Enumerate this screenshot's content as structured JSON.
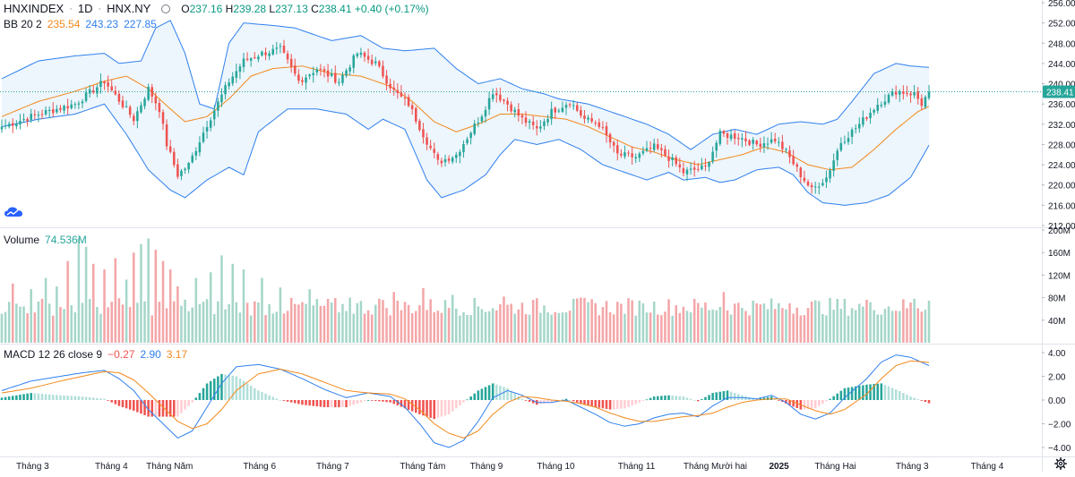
{
  "header": {
    "symbol": "HNXINDEX",
    "interval": "1D",
    "exchange": "HNX.NY",
    "open_label": "O",
    "open": "237.16",
    "high_label": "H",
    "high": "239.28",
    "low_label": "L",
    "low": "237.13",
    "close_label": "C",
    "close": "238.41",
    "change": "+0.40 (+0.17%)"
  },
  "bb_legend": {
    "label": "BB 20 2",
    "basis": "235.54",
    "upper": "243.23",
    "lower": "227.85"
  },
  "volume_legend": {
    "label": "Volume",
    "value": "74.536M"
  },
  "macd_legend": {
    "label": "MACD 12 26 close 9",
    "histogram": "−0.27",
    "macd": "2.90",
    "signal": "3.17"
  },
  "colors": {
    "up": "#26a69a",
    "down": "#ef5350",
    "bb_band_line": "#2f80ed",
    "bb_basis": "#f2891b",
    "bb_fill": "#e8f2fc",
    "last_price_badge": "#26a69a",
    "volume_up": "#a5d6c9",
    "volume_down": "#f4a6a8",
    "hist_up_strong": "#26a69a",
    "hist_up_weak": "#b2dfdb",
    "hist_down_strong": "#ef5350",
    "hist_down_weak": "#ffcdd2"
  },
  "icons": {
    "logo": "tradingview-cloud-icon",
    "settings": "gear-icon"
  },
  "chart_data": [
    {
      "type": "candlestick",
      "pane": "price",
      "y_ticks": [
        212,
        216,
        220,
        224,
        228,
        232,
        236,
        240,
        244,
        248,
        252,
        256
      ],
      "y_tick_labels": [
        "212.00",
        "216.00",
        "220.00",
        "224.00",
        "228.00",
        "232.00",
        "236.00",
        "240.00",
        "244.00",
        "248.00",
        "252.00",
        "256.00"
      ],
      "ylim": [
        212,
        256
      ],
      "last_price": 238.41,
      "last_price_label": "238.41",
      "x_labels": [
        "Tháng 3",
        "Tháng 4",
        "Tháng Năm",
        "Tháng 6",
        "Tháng 7",
        "Tháng Tám",
        "Tháng 9",
        "Tháng 10",
        "Tháng 11",
        "Tháng Mười hai",
        "2025",
        "Tháng Hai",
        "Tháng 3",
        "Tháng 4"
      ],
      "close_anchors": [
        [
          0,
          231.5
        ],
        [
          10,
          234
        ],
        [
          20,
          236
        ],
        [
          28,
          240.5
        ],
        [
          36,
          233
        ],
        [
          40,
          239
        ],
        [
          43,
          235
        ],
        [
          45,
          228
        ],
        [
          48,
          222
        ],
        [
          51,
          224
        ],
        [
          56,
          232
        ],
        [
          62,
          240.5
        ],
        [
          66,
          244.5
        ],
        [
          71,
          246
        ],
        [
          76,
          246.8
        ],
        [
          81,
          240.5
        ],
        [
          86,
          243
        ],
        [
          92,
          240.5
        ],
        [
          97,
          246
        ],
        [
          102,
          244
        ],
        [
          107,
          238.5
        ],
        [
          111,
          236
        ],
        [
          115,
          230
        ],
        [
          119,
          224.5
        ],
        [
          124,
          226
        ],
        [
          131,
          234
        ],
        [
          134,
          238.5
        ],
        [
          138,
          236
        ],
        [
          142,
          233
        ],
        [
          146,
          231
        ],
        [
          150,
          234.5
        ],
        [
          155,
          236.5
        ],
        [
          159,
          233
        ],
        [
          163,
          232
        ],
        [
          168,
          226
        ],
        [
          173,
          225.5
        ],
        [
          178,
          227.5
        ],
        [
          183,
          224.8
        ],
        [
          186,
          222.5
        ],
        [
          192,
          223.5
        ],
        [
          196,
          230
        ],
        [
          201,
          229.5
        ],
        [
          206,
          228
        ],
        [
          211,
          229
        ],
        [
          214,
          226.5
        ],
        [
          218,
          222
        ],
        [
          221,
          219
        ],
        [
          225,
          221.5
        ],
        [
          229,
          228.5
        ],
        [
          234,
          232
        ],
        [
          239,
          236
        ],
        [
          244,
          238.5
        ],
        [
          249,
          238
        ],
        [
          251,
          236
        ],
        [
          253,
          238.41
        ]
      ],
      "bb_upper_anchors": [
        [
          0,
          241
        ],
        [
          10,
          244.5
        ],
        [
          20,
          245.5
        ],
        [
          28,
          246
        ],
        [
          32,
          244
        ],
        [
          38,
          244.5
        ],
        [
          42,
          251
        ],
        [
          46,
          252.5
        ],
        [
          50,
          246
        ],
        [
          54,
          236
        ],
        [
          58,
          235
        ],
        [
          62,
          248
        ],
        [
          66,
          252
        ],
        [
          74,
          251.5
        ],
        [
          80,
          251
        ],
        [
          90,
          248.5
        ],
        [
          98,
          249.5
        ],
        [
          104,
          247
        ],
        [
          110,
          246.5
        ],
        [
          118,
          247
        ],
        [
          124,
          243
        ],
        [
          130,
          240
        ],
        [
          136,
          241
        ],
        [
          142,
          239
        ],
        [
          148,
          238
        ],
        [
          152,
          237
        ],
        [
          160,
          236
        ],
        [
          166,
          234.5
        ],
        [
          172,
          233
        ],
        [
          176,
          232
        ],
        [
          182,
          230
        ],
        [
          188,
          227
        ],
        [
          194,
          230
        ],
        [
          200,
          231
        ],
        [
          206,
          230
        ],
        [
          212,
          232
        ],
        [
          218,
          232.5
        ],
        [
          224,
          232
        ],
        [
          228,
          233
        ],
        [
          232,
          236.5
        ],
        [
          238,
          242
        ],
        [
          244,
          244
        ],
        [
          248,
          243.5
        ],
        [
          253,
          243.23
        ]
      ],
      "bb_lower_anchors": [
        [
          0,
          231.5
        ],
        [
          10,
          233
        ],
        [
          20,
          234
        ],
        [
          28,
          236
        ],
        [
          34,
          230
        ],
        [
          40,
          223
        ],
        [
          46,
          219
        ],
        [
          50,
          217.5
        ],
        [
          56,
          221
        ],
        [
          62,
          223.5
        ],
        [
          66,
          222
        ],
        [
          70,
          230.5
        ],
        [
          78,
          235
        ],
        [
          86,
          235
        ],
        [
          94,
          234
        ],
        [
          100,
          231
        ],
        [
          104,
          233
        ],
        [
          110,
          231
        ],
        [
          116,
          221
        ],
        [
          120,
          217.5
        ],
        [
          126,
          219
        ],
        [
          132,
          222
        ],
        [
          136,
          226
        ],
        [
          140,
          229
        ],
        [
          146,
          228
        ],
        [
          152,
          229
        ],
        [
          158,
          227
        ],
        [
          164,
          224
        ],
        [
          170,
          222.5
        ],
        [
          176,
          221
        ],
        [
          182,
          222.5
        ],
        [
          186,
          221
        ],
        [
          192,
          221.5
        ],
        [
          196,
          220.5
        ],
        [
          200,
          221
        ],
        [
          206,
          223
        ],
        [
          212,
          223.5
        ],
        [
          216,
          222
        ],
        [
          220,
          218.5
        ],
        [
          224,
          216.5
        ],
        [
          230,
          216
        ],
        [
          236,
          216.5
        ],
        [
          242,
          218
        ],
        [
          248,
          221.5
        ],
        [
          253,
          227.85
        ]
      ],
      "bb_basis_anchors": [
        [
          0,
          233.5
        ],
        [
          10,
          236.5
        ],
        [
          20,
          238.5
        ],
        [
          28,
          240.5
        ],
        [
          34,
          241.5
        ],
        [
          40,
          239
        ],
        [
          46,
          235
        ],
        [
          50,
          232.5
        ],
        [
          56,
          233.5
        ],
        [
          62,
          237
        ],
        [
          68,
          241.5
        ],
        [
          74,
          243
        ],
        [
          82,
          243.5
        ],
        [
          90,
          242
        ],
        [
          98,
          241.5
        ],
        [
          106,
          239.5
        ],
        [
          112,
          236.5
        ],
        [
          118,
          232.5
        ],
        [
          124,
          230.5
        ],
        [
          130,
          232
        ],
        [
          136,
          234
        ],
        [
          142,
          234
        ],
        [
          148,
          233.5
        ],
        [
          154,
          233
        ],
        [
          160,
          231.5
        ],
        [
          166,
          229.5
        ],
        [
          172,
          227.5
        ],
        [
          178,
          226.5
        ],
        [
          184,
          225
        ],
        [
          190,
          224
        ],
        [
          196,
          225
        ],
        [
          202,
          226
        ],
        [
          208,
          227.5
        ],
        [
          214,
          226.5
        ],
        [
          220,
          224
        ],
        [
          226,
          223
        ],
        [
          232,
          223.5
        ],
        [
          238,
          227
        ],
        [
          244,
          231
        ],
        [
          250,
          234.5
        ],
        [
          253,
          235.54
        ]
      ]
    },
    {
      "type": "bar",
      "pane": "volume",
      "y_ticks": [
        40,
        80,
        120,
        160,
        200
      ],
      "y_tick_labels": [
        "40M",
        "80M",
        "120M",
        "160M",
        "200M"
      ],
      "ylim": [
        0,
        200
      ],
      "unit": "M",
      "last_value": 74.536,
      "spikes": [
        [
          3,
          105
        ],
        [
          8,
          95
        ],
        [
          12,
          115
        ],
        [
          15,
          100
        ],
        [
          18,
          145
        ],
        [
          21,
          185
        ],
        [
          23,
          170
        ],
        [
          25,
          140
        ],
        [
          28,
          130
        ],
        [
          31,
          150
        ],
        [
          34,
          112
        ],
        [
          36,
          160
        ],
        [
          38,
          175
        ],
        [
          40,
          185
        ],
        [
          42,
          165
        ],
        [
          44,
          145
        ],
        [
          46,
          130
        ],
        [
          48,
          100
        ],
        [
          53,
          115
        ],
        [
          57,
          125
        ],
        [
          60,
          155
        ],
        [
          63,
          140
        ],
        [
          66,
          130
        ],
        [
          71,
          115
        ],
        [
          76,
          98
        ],
        [
          84,
          95
        ],
        [
          95,
          80
        ],
        [
          103,
          78
        ],
        [
          107,
          90
        ],
        [
          115,
          97
        ],
        [
          123,
          85
        ],
        [
          137,
          82
        ],
        [
          158,
          80
        ],
        [
          175,
          70
        ],
        [
          197,
          90
        ],
        [
          215,
          70
        ],
        [
          237,
          72
        ],
        [
          249,
          78
        ]
      ]
    },
    {
      "type": "histogram+line",
      "pane": "macd",
      "y_ticks": [
        -4,
        -2,
        0,
        2,
        4
      ],
      "y_tick_labels": [
        "−4.00",
        "−2.00",
        "0.00",
        "2.00",
        "4.00"
      ],
      "ylim": [
        -4.6,
        4.6
      ],
      "macd_anchors": [
        [
          0,
          0.8
        ],
        [
          8,
          1.6
        ],
        [
          16,
          2.0
        ],
        [
          22,
          2.3
        ],
        [
          28,
          2.5
        ],
        [
          32,
          1.8
        ],
        [
          36,
          0.8
        ],
        [
          40,
          -0.8
        ],
        [
          44,
          -2.0
        ],
        [
          48,
          -3.2
        ],
        [
          52,
          -2.6
        ],
        [
          56,
          -0.6
        ],
        [
          60,
          1.4
        ],
        [
          64,
          2.8
        ],
        [
          70,
          3.0
        ],
        [
          76,
          2.6
        ],
        [
          82,
          1.8
        ],
        [
          88,
          0.9
        ],
        [
          94,
          0.2
        ],
        [
          100,
          0.6
        ],
        [
          106,
          0.3
        ],
        [
          110,
          -0.6
        ],
        [
          114,
          -2.0
        ],
        [
          118,
          -3.6
        ],
        [
          122,
          -4.0
        ],
        [
          126,
          -3.4
        ],
        [
          130,
          -1.8
        ],
        [
          134,
          0.2
        ],
        [
          138,
          0.8
        ],
        [
          142,
          0.4
        ],
        [
          146,
          -0.2
        ],
        [
          150,
          -0.2
        ],
        [
          154,
          0.0
        ],
        [
          158,
          -0.6
        ],
        [
          162,
          -1.2
        ],
        [
          166,
          -1.9
        ],
        [
          170,
          -2.2
        ],
        [
          174,
          -2.0
        ],
        [
          178,
          -1.5
        ],
        [
          182,
          -1.2
        ],
        [
          186,
          -1.1
        ],
        [
          190,
          -1.4
        ],
        [
          194,
          -0.5
        ],
        [
          198,
          0.2
        ],
        [
          202,
          0.2
        ],
        [
          206,
          0.1
        ],
        [
          210,
          0.4
        ],
        [
          214,
          -0.2
        ],
        [
          218,
          -1.2
        ],
        [
          222,
          -1.6
        ],
        [
          226,
          -1.1
        ],
        [
          230,
          0.2
        ],
        [
          236,
          1.8
        ],
        [
          240,
          3.2
        ],
        [
          244,
          3.8
        ],
        [
          248,
          3.6
        ],
        [
          253,
          2.9
        ]
      ],
      "signal_anchors": [
        [
          0,
          0.6
        ],
        [
          8,
          1.0
        ],
        [
          16,
          1.6
        ],
        [
          22,
          2.0
        ],
        [
          28,
          2.4
        ],
        [
          32,
          2.3
        ],
        [
          36,
          1.7
        ],
        [
          40,
          0.6
        ],
        [
          44,
          -0.6
        ],
        [
          48,
          -1.8
        ],
        [
          52,
          -2.4
        ],
        [
          56,
          -2.0
        ],
        [
          60,
          -0.8
        ],
        [
          64,
          0.8
        ],
        [
          70,
          2.2
        ],
        [
          76,
          2.6
        ],
        [
          82,
          2.2
        ],
        [
          88,
          1.5
        ],
        [
          94,
          0.8
        ],
        [
          100,
          0.6
        ],
        [
          106,
          0.5
        ],
        [
          110,
          0.1
        ],
        [
          114,
          -0.8
        ],
        [
          118,
          -2.0
        ],
        [
          122,
          -2.8
        ],
        [
          126,
          -3.2
        ],
        [
          130,
          -2.6
        ],
        [
          134,
          -1.2
        ],
        [
          138,
          -0.2
        ],
        [
          142,
          0.3
        ],
        [
          146,
          0.2
        ],
        [
          150,
          0.0
        ],
        [
          154,
          -0.1
        ],
        [
          158,
          -0.3
        ],
        [
          162,
          -0.6
        ],
        [
          166,
          -1.1
        ],
        [
          170,
          -1.5
        ],
        [
          174,
          -1.8
        ],
        [
          178,
          -1.8
        ],
        [
          182,
          -1.6
        ],
        [
          186,
          -1.4
        ],
        [
          190,
          -1.3
        ],
        [
          194,
          -1.1
        ],
        [
          198,
          -0.6
        ],
        [
          202,
          -0.2
        ],
        [
          206,
          0.0
        ],
        [
          210,
          0.1
        ],
        [
          214,
          0.1
        ],
        [
          218,
          -0.4
        ],
        [
          222,
          -0.9
        ],
        [
          226,
          -1.2
        ],
        [
          230,
          -0.8
        ],
        [
          236,
          0.5
        ],
        [
          240,
          1.8
        ],
        [
          244,
          2.9
        ],
        [
          248,
          3.3
        ],
        [
          253,
          3.17
        ]
      ]
    }
  ]
}
